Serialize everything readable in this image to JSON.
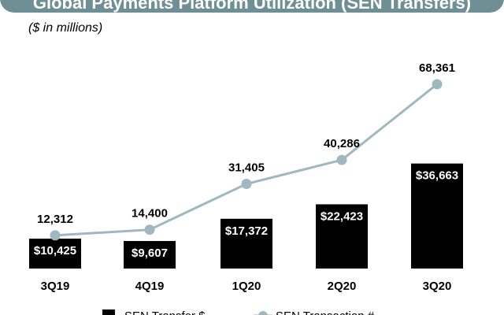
{
  "chart_data": {
    "type": "bar",
    "title": "Global Payments Platform Utilization (SEN Transfers)",
    "subtitle": "($ in millions)",
    "categories": [
      "3Q19",
      "4Q19",
      "1Q20",
      "2Q20",
      "3Q20"
    ],
    "series": [
      {
        "name": "SEN Transfer $",
        "kind": "bar",
        "values": [
          10425,
          9607,
          17372,
          22423,
          36663
        ],
        "labels": [
          "$10,425",
          "$9,607",
          "$17,372",
          "$22,423",
          "$36,663"
        ]
      },
      {
        "name": "SEN Transaction #",
        "kind": "line",
        "values": [
          12312,
          14400,
          31405,
          40286,
          68361
        ],
        "labels": [
          "12,312",
          "14,400",
          "31,405",
          "40,286",
          "68,361"
        ]
      }
    ],
    "ylim_bars": [
      0,
      80000
    ],
    "ylim_line": [
      0,
      85000
    ],
    "grid": false,
    "legend_position": "bottom"
  },
  "colors": {
    "bar": "#000000",
    "line": "#9fb8bf",
    "title_band": "#6f8f96"
  }
}
